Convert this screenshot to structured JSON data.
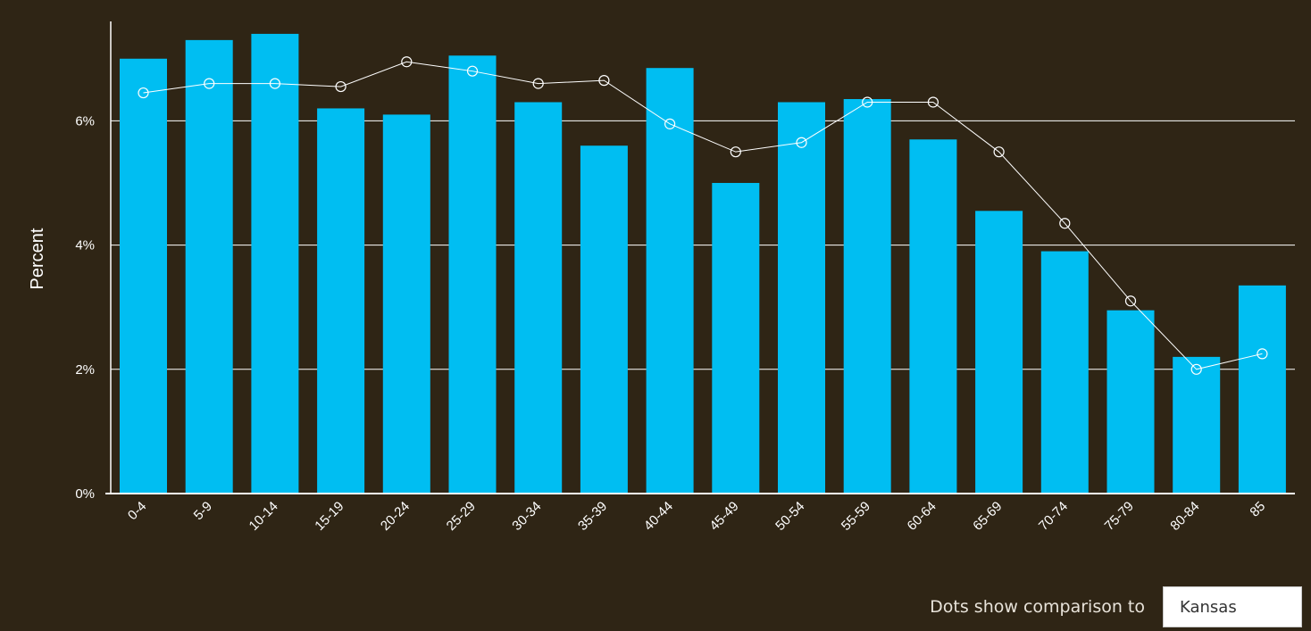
{
  "chart_data": {
    "type": "bar",
    "ylabel": "Percent",
    "ylim": [
      0,
      7.6
    ],
    "yticks": [
      {
        "value": 0,
        "label": "0%"
      },
      {
        "value": 2,
        "label": "2%"
      },
      {
        "value": 4,
        "label": "4%"
      },
      {
        "value": 6,
        "label": "6%"
      }
    ],
    "grid": true,
    "categories": [
      "0-4",
      "5-9",
      "10-14",
      "15-19",
      "20-24",
      "25-29",
      "30-34",
      "35-39",
      "40-44",
      "45-49",
      "50-54",
      "55-59",
      "60-64",
      "65-69",
      "70-74",
      "75-79",
      "80-84",
      "85"
    ],
    "series": [
      {
        "type": "bar",
        "color": "#00bef2",
        "values": [
          7.0,
          7.3,
          7.4,
          6.2,
          6.1,
          7.05,
          6.3,
          5.6,
          6.85,
          5.0,
          6.3,
          6.35,
          5.7,
          4.55,
          3.9,
          2.95,
          2.2,
          3.35
        ]
      },
      {
        "type": "line",
        "color": "#ffffff",
        "marker": "hollow-circle",
        "values": [
          6.45,
          6.6,
          6.6,
          6.55,
          6.95,
          6.8,
          6.6,
          6.65,
          5.95,
          5.5,
          5.65,
          6.3,
          6.3,
          5.5,
          4.35,
          3.1,
          2.0,
          2.25
        ]
      }
    ]
  },
  "comparison": {
    "label": "Dots show comparison to",
    "selected": "Kansas"
  }
}
